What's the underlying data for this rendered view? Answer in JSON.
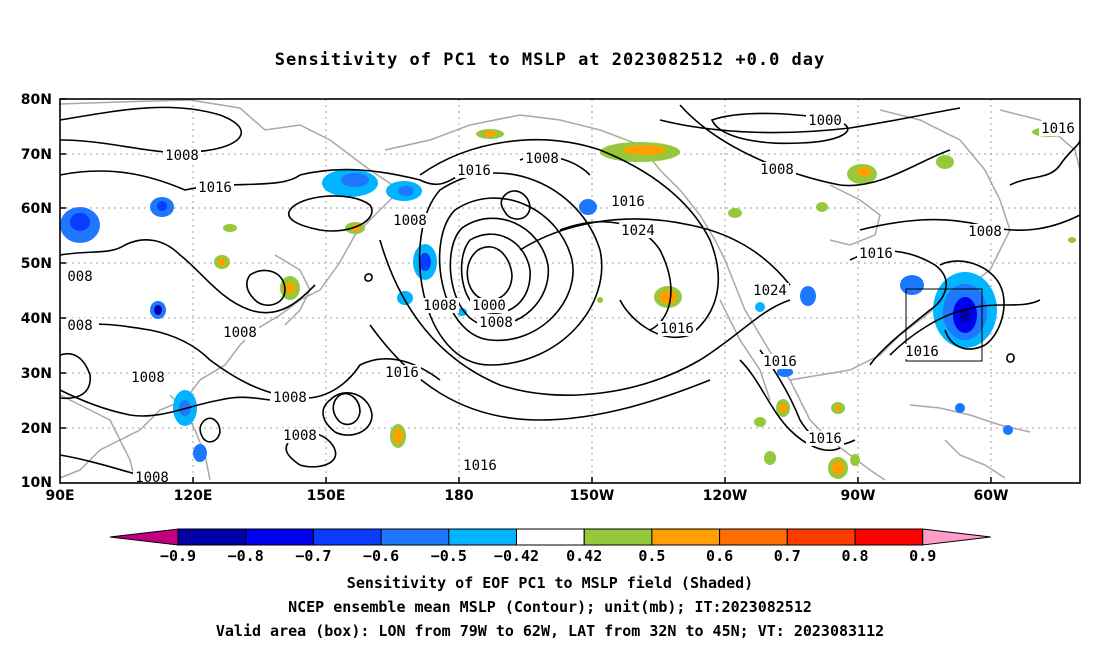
{
  "title": "Sensitivity of PC1 to MSLP at 2023082512 +0.0 day",
  "map": {
    "lat_labels": [
      "80N",
      "70N",
      "60N",
      "50N",
      "40N",
      "30N",
      "20N",
      "10N"
    ],
    "lon_labels": [
      "90E",
      "120E",
      "150E",
      "180",
      "150W",
      "120W",
      "90W",
      "60W"
    ],
    "contour_labels": [
      {
        "text": "1008"
      },
      {
        "text": "1016"
      },
      {
        "text": "1008"
      },
      {
        "text": "1016"
      },
      {
        "text": "1000"
      },
      {
        "text": "1008"
      },
      {
        "text": "1016"
      },
      {
        "text": "1024"
      },
      {
        "text": "1016"
      },
      {
        "text": "1024"
      },
      {
        "text": "1000"
      },
      {
        "text": "1008"
      },
      {
        "text": "1016"
      },
      {
        "text": "1016"
      },
      {
        "text": "1008"
      },
      {
        "text": "1016"
      },
      {
        "text": "1016"
      },
      {
        "text": "1016"
      },
      {
        "text": "1008"
      },
      {
        "text": "1008"
      },
      {
        "text": "1008"
      },
      {
        "text": "1008"
      },
      {
        "text": "1008"
      },
      {
        "text": "1016"
      },
      {
        "text": "1008"
      },
      {
        "text": "1016"
      },
      {
        "text": "1008"
      },
      {
        "text": "008"
      },
      {
        "text": "008"
      }
    ]
  },
  "colorbar": {
    "labels": [
      "-0.9",
      "-0.8",
      "-0.7",
      "-0.6",
      "-0.5",
      "-0.42",
      "0.42",
      "0.5",
      "0.6",
      "0.7",
      "0.8",
      "0.9"
    ],
    "colors": [
      "#c0007e",
      "#0000a8",
      "#0000f0",
      "#0a3cff",
      "#1e78ff",
      "#00b4ff",
      "#ffffff",
      "#96c83c",
      "#ffa000",
      "#ff6e00",
      "#ff3c00",
      "#ff0000",
      "#ff9cc8"
    ]
  },
  "captions": {
    "line1": "Sensitivity of EOF PC1 to MSLP field (Shaded)",
    "line2": "NCEP ensemble mean MSLP (Contour); unit(mb); IT:2023082512",
    "line3": "Valid area (box): LON from 79W to 62W, LAT from 32N to 45N; VT: 2023083112"
  }
}
